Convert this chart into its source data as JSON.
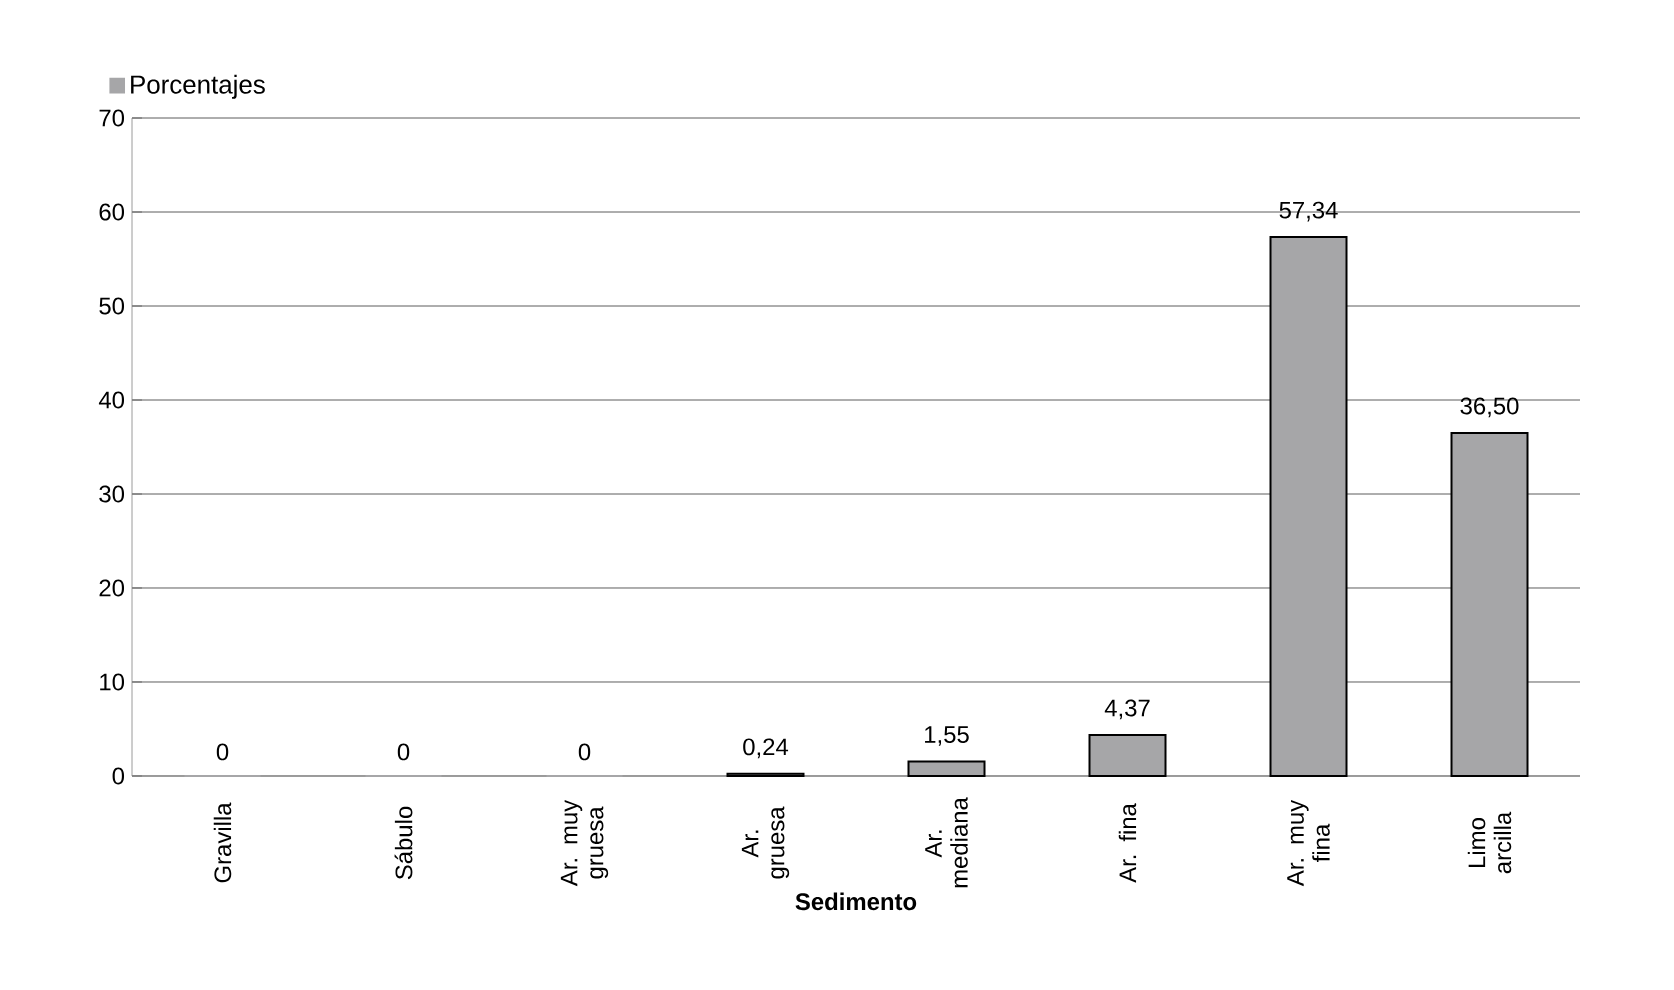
{
  "chart_data": {
    "type": "bar",
    "xlabel": "Sedimento",
    "categories": [
      "Gravilla",
      "Sábulo",
      "Ar. muy gruesa",
      "Ar. gruesa",
      "Ar. mediana",
      "Ar. fina",
      "Ar. muy fina",
      "Limo arcilla"
    ],
    "series": [
      {
        "name": "Porcentajes",
        "color": "#a6a6a8",
        "values": [
          0,
          0,
          0,
          0.24,
          1.55,
          4.37,
          57.34,
          36.5
        ],
        "value_labels": [
          "0",
          "0",
          "0",
          "0,24",
          "1,55",
          "4,37",
          "57,34",
          "36,50"
        ]
      }
    ],
    "ylim": [
      0,
      70
    ],
    "yticks": [
      0,
      10,
      20,
      30,
      40,
      50,
      60,
      70
    ],
    "grid": "y",
    "legend": "top left"
  }
}
